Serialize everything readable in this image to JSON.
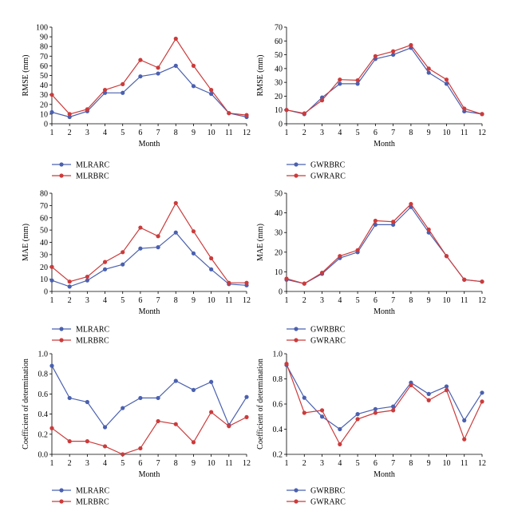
{
  "chart_data": [
    {
      "type": "line",
      "x": [
        1,
        2,
        3,
        4,
        5,
        6,
        7,
        8,
        9,
        10,
        11,
        12
      ],
      "xlabel": "Month",
      "ylabel": "RMSE (mm)",
      "ylim": [
        0,
        100
      ],
      "yticks": [
        0,
        10,
        20,
        30,
        40,
        50,
        60,
        70,
        80,
        90,
        100
      ],
      "legend_position": "bottom",
      "series": [
        {
          "name": "MLRARC",
          "color": "#4a60b0",
          "values": [
            12,
            7,
            13,
            32,
            32,
            49,
            52,
            60,
            39,
            31,
            11,
            7
          ]
        },
        {
          "name": "MLRBRC",
          "color": "#cc3b3b",
          "values": [
            30,
            10,
            15,
            35,
            41,
            66,
            58,
            88,
            60,
            35,
            11,
            9
          ]
        }
      ]
    },
    {
      "type": "line",
      "x": [
        1,
        2,
        3,
        4,
        5,
        6,
        7,
        8,
        9,
        10,
        11,
        12
      ],
      "xlabel": "Month",
      "ylabel": "RMSE (mm)",
      "ylim": [
        0,
        70
      ],
      "yticks": [
        0,
        10,
        20,
        30,
        40,
        50,
        60,
        70
      ],
      "legend_position": "bottom",
      "series": [
        {
          "name": "GWRBRC",
          "color": "#4a60b0",
          "values": [
            10,
            7,
            19,
            29,
            29,
            47,
            50,
            55,
            37,
            29,
            9,
            7
          ]
        },
        {
          "name": "GWRARC",
          "color": "#cc3b3b",
          "values": [
            10,
            7.5,
            17,
            32,
            31.5,
            49,
            52.5,
            57,
            40,
            32,
            11,
            7
          ]
        }
      ]
    },
    {
      "type": "line",
      "x": [
        1,
        2,
        3,
        4,
        5,
        6,
        7,
        8,
        9,
        10,
        11,
        12
      ],
      "xlabel": "Month",
      "ylabel": "MAE (mm)",
      "ylim": [
        0,
        80
      ],
      "yticks": [
        0,
        10,
        20,
        30,
        40,
        50,
        60,
        70,
        80
      ],
      "legend_position": "bottom",
      "series": [
        {
          "name": "MLRARC",
          "color": "#4a60b0",
          "values": [
            9,
            4,
            9,
            18,
            22,
            35,
            36,
            48,
            31,
            18,
            6,
            5
          ]
        },
        {
          "name": "MLRBRC",
          "color": "#cc3b3b",
          "values": [
            20,
            8,
            12,
            24,
            32,
            52,
            45,
            72,
            49,
            27,
            7,
            7
          ]
        }
      ]
    },
    {
      "type": "line",
      "x": [
        1,
        2,
        3,
        4,
        5,
        6,
        7,
        8,
        9,
        10,
        11,
        12
      ],
      "xlabel": "Month",
      "ylabel": "MAE (mm)",
      "ylim": [
        0,
        50
      ],
      "yticks": [
        0,
        10,
        20,
        30,
        40,
        50
      ],
      "legend_position": "bottom",
      "series": [
        {
          "name": "GWRBRC",
          "color": "#4a60b0",
          "values": [
            6,
            4,
            9,
            17,
            20,
            34,
            34,
            43,
            30,
            18,
            6,
            5
          ]
        },
        {
          "name": "GWRARC",
          "color": "#cc3b3b",
          "values": [
            6.5,
            4,
            9.5,
            18,
            21,
            36,
            35.5,
            44.5,
            31.5,
            18,
            6,
            5
          ]
        }
      ]
    },
    {
      "type": "line",
      "x": [
        1,
        2,
        3,
        4,
        5,
        6,
        7,
        8,
        9,
        10,
        11,
        12
      ],
      "xlabel": "Month",
      "ylabel": "Coefficient of determination",
      "ylim": [
        0,
        1.0
      ],
      "yticks": [
        "0.0",
        "0.2",
        "0.4",
        "0.6",
        "0.8",
        "1.0"
      ],
      "legend_position": "bottom",
      "series": [
        {
          "name": "MLRARC",
          "color": "#4a60b0",
          "values": [
            0.88,
            0.56,
            0.52,
            0.27,
            0.46,
            0.56,
            0.56,
            0.73,
            0.64,
            0.72,
            0.29,
            0.57
          ]
        },
        {
          "name": "MLRBRC",
          "color": "#cc3b3b",
          "values": [
            0.26,
            0.13,
            0.13,
            0.08,
            0.0,
            0.06,
            0.33,
            0.3,
            0.12,
            0.42,
            0.28,
            0.37
          ]
        }
      ]
    },
    {
      "type": "line",
      "x": [
        1,
        2,
        3,
        4,
        5,
        6,
        7,
        8,
        9,
        10,
        11,
        12
      ],
      "xlabel": "Month",
      "ylabel": "Coefficient of determination",
      "ylim": [
        0.2,
        1.0
      ],
      "yticks": [
        "0.2",
        "0.4",
        "0.6",
        "0.8",
        "1.0"
      ],
      "legend_position": "bottom",
      "series": [
        {
          "name": "GWRBRC",
          "color": "#4a60b0",
          "values": [
            0.91,
            0.65,
            0.5,
            0.4,
            0.52,
            0.56,
            0.58,
            0.77,
            0.68,
            0.74,
            0.47,
            0.69
          ]
        },
        {
          "name": "GWRARC",
          "color": "#cc3b3b",
          "values": [
            0.92,
            0.53,
            0.55,
            0.28,
            0.48,
            0.53,
            0.55,
            0.75,
            0.63,
            0.71,
            0.32,
            0.62
          ]
        }
      ]
    }
  ]
}
